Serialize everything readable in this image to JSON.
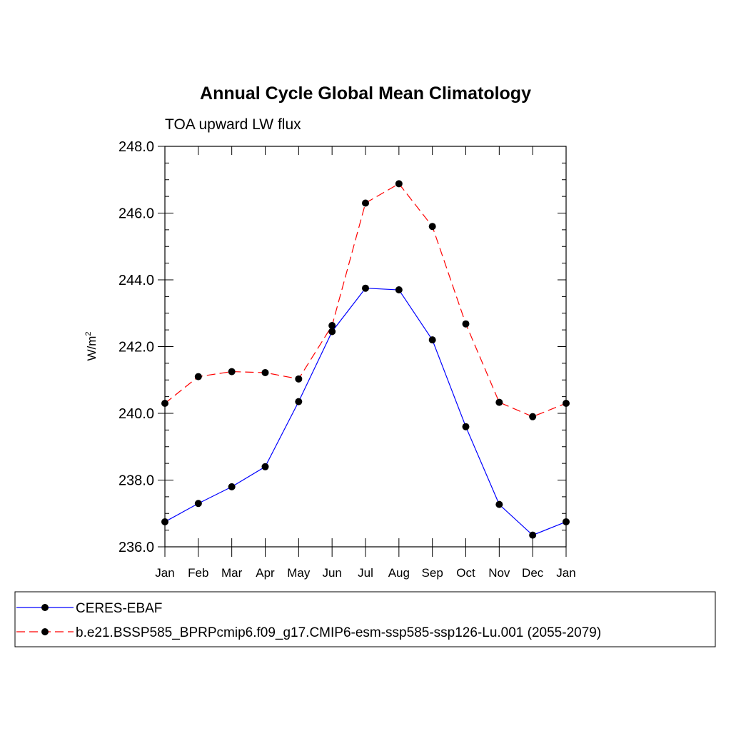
{
  "chart_data": {
    "type": "line",
    "title": "Annual Cycle Global Mean Climatology",
    "subtitle": "TOA upward LW flux",
    "ylabel_base": "W/m",
    "ylabel_sup": "2",
    "xlabel": "",
    "categories": [
      "Jan",
      "Feb",
      "Mar",
      "Apr",
      "May",
      "Jun",
      "Jul",
      "Aug",
      "Sep",
      "Oct",
      "Nov",
      "Dec",
      "Jan"
    ],
    "ylim": [
      236.0,
      248.0
    ],
    "yticks": [
      "236.0",
      "238.0",
      "240.0",
      "242.0",
      "244.0",
      "246.0",
      "248.0"
    ],
    "series": [
      {
        "name": "CERES-EBAF",
        "color": "#0000ff",
        "dash": "solid",
        "values": [
          236.75,
          237.3,
          237.8,
          238.4,
          240.35,
          242.45,
          243.75,
          243.7,
          242.2,
          239.6,
          237.27,
          236.35,
          236.75
        ]
      },
      {
        "name": "b.e21.BSSP585_BPRPcmip6.f09_g17.CMIP6-esm-ssp585-ssp126-Lu.001 (2055-2079)",
        "color": "#ff0000",
        "dash": "dashed",
        "values": [
          240.3,
          241.1,
          241.25,
          241.22,
          241.03,
          242.63,
          246.3,
          246.88,
          245.6,
          242.68,
          240.33,
          239.9,
          240.3
        ]
      }
    ],
    "grid": false,
    "legend": "bottom"
  }
}
